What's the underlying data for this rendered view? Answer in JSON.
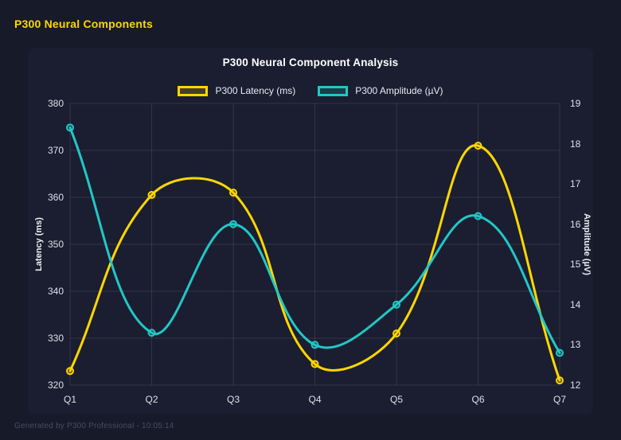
{
  "page": {
    "header": "P300 Neural Components",
    "footer": "Generated by P300 Professional - 10:05:14"
  },
  "chart_data": {
    "type": "line",
    "title": "P300 Neural Component Analysis",
    "categories": [
      "Q1",
      "Q2",
      "Q3",
      "Q4",
      "Q5",
      "Q6",
      "Q7"
    ],
    "series": [
      {
        "name": "P300 Latency (ms)",
        "axis": "left",
        "color": "#FFD700",
        "values": [
          323,
          360.5,
          361,
          324.5,
          331,
          371,
          321
        ]
      },
      {
        "name": "P300 Amplitude (µV)",
        "axis": "right",
        "color": "#22C7C7",
        "values": [
          18.4,
          13.3,
          16.0,
          13.0,
          14.0,
          16.2,
          12.8
        ]
      }
    ],
    "left_axis": {
      "label": "Latency (ms)",
      "min": 320,
      "max": 380,
      "step": 10
    },
    "right_axis": {
      "label": "Amplitude (µV)",
      "min": 12,
      "max": 19,
      "step": 1
    },
    "grid": true,
    "legend_position": "top",
    "line_tension": 0.4
  },
  "colors": {
    "accent_yellow": "#FFD700",
    "accent_teal": "#22C7C7",
    "page_background": "#171a28",
    "card_background": "#1b1e30",
    "grid_line": "rgba(255,255,255,0.10)",
    "tick_text": "#dde0e8",
    "title_text": "#ffffff"
  }
}
